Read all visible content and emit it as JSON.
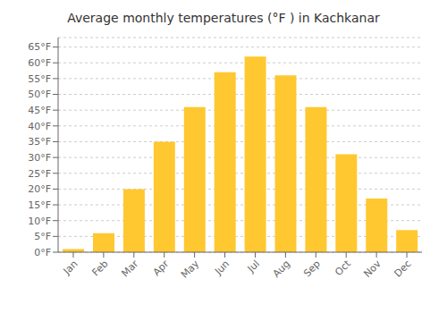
{
  "chart_data": {
    "type": "bar",
    "title": "Average monthly temperatures (°F ) in Kachkanar",
    "categories": [
      "Jan",
      "Feb",
      "Mar",
      "Apr",
      "May",
      "Jun",
      "Jul",
      "Aug",
      "Sep",
      "Oct",
      "Nov",
      "Dec"
    ],
    "values": [
      1,
      6,
      20,
      35,
      46,
      57,
      62,
      56,
      46,
      31,
      17,
      7
    ],
    "color": "#FFC830",
    "ylim": [
      0,
      68
    ],
    "yticks": [
      {
        "value": 0,
        "label": "0°F"
      },
      {
        "value": 5,
        "label": "5°F"
      },
      {
        "value": 10,
        "label": "10°F"
      },
      {
        "value": 15,
        "label": "15°F"
      },
      {
        "value": 20,
        "label": "20°F"
      },
      {
        "value": 25,
        "label": "25°F"
      },
      {
        "value": 30,
        "label": "30°F"
      },
      {
        "value": 35,
        "label": "35°F"
      },
      {
        "value": 40,
        "label": "40°F"
      },
      {
        "value": 45,
        "label": "45°F"
      },
      {
        "value": 50,
        "label": "50°F"
      },
      {
        "value": 55,
        "label": "55°F"
      },
      {
        "value": 60,
        "label": "60°F"
      },
      {
        "value": 65,
        "label": "65°F"
      }
    ],
    "grid": true
  }
}
